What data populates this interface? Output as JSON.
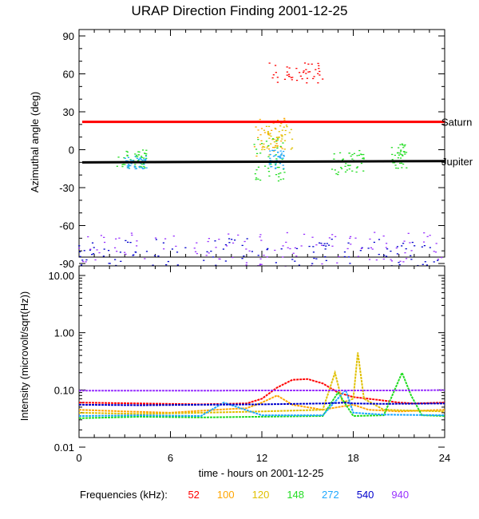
{
  "title": "URAP Direction Finding  2001-12-25",
  "frequencies_label": "Frequencies (kHz):",
  "chart_data": [
    {
      "type": "scatter",
      "ylabel": "Azimuthal angle (deg)",
      "xlim": [
        0,
        24
      ],
      "ylim": [
        -90,
        90
      ],
      "yticks": [
        "90",
        "60",
        "30",
        "0",
        "-30",
        "-60",
        "-90"
      ],
      "reference_lines": [
        {
          "name": "Saturn",
          "color": "#ff0000",
          "y_start": 22,
          "y_end": 22
        },
        {
          "name": "Jupiter",
          "color": "#000000",
          "y_start": -10,
          "y_end": -9
        }
      ],
      "clusters": [
        {
          "freq": "52",
          "x": [
            12.5,
            16.0
          ],
          "y": [
            52,
            70
          ]
        },
        {
          "freq": "100",
          "x": [
            11.5,
            13.5
          ],
          "y": [
            -5,
            25
          ]
        },
        {
          "freq": "120",
          "x": [
            12.0,
            14.0
          ],
          "y": [
            0,
            20
          ]
        },
        {
          "freq": "148",
          "x": [
            2.5,
            4.5
          ],
          "y": [
            -15,
            0
          ]
        },
        {
          "freq": "148",
          "x": [
            11.5,
            13.5
          ],
          "y": [
            -25,
            10
          ]
        },
        {
          "freq": "148",
          "x": [
            16.5,
            19.0
          ],
          "y": [
            -20,
            0
          ]
        },
        {
          "freq": "148",
          "x": [
            20.5,
            21.5
          ],
          "y": [
            -15,
            5
          ]
        },
        {
          "freq": "272",
          "x": [
            3.0,
            4.5
          ],
          "y": [
            -15,
            -5
          ]
        },
        {
          "freq": "272",
          "x": [
            12.5,
            13.5
          ],
          "y": [
            -15,
            0
          ]
        },
        {
          "freq": "540",
          "x": [
            0,
            24
          ],
          "y": [
            -92,
            -70
          ]
        },
        {
          "freq": "940",
          "x": [
            0,
            24
          ],
          "y": [
            -92,
            -65
          ]
        }
      ]
    },
    {
      "type": "line",
      "ylabel": "Intensity (microvolt/sqrt(Hz))",
      "xlabel": "time - hours on 2001-12-25",
      "xlim": [
        0,
        24
      ],
      "xticks": [
        "0",
        "6",
        "12",
        "18",
        "24"
      ],
      "ylim": [
        0.01,
        10
      ],
      "yscale": "log",
      "yticks": [
        "10.00",
        "1.00",
        "0.10",
        "0.01"
      ],
      "series": [
        {
          "name": "52",
          "color": "#ff0000",
          "x": [
            0,
            4,
            8,
            11,
            12,
            13,
            14,
            15,
            16,
            17,
            18,
            19,
            20,
            21,
            22,
            24
          ],
          "y": [
            0.06,
            0.058,
            0.056,
            0.058,
            0.07,
            0.11,
            0.15,
            0.155,
            0.13,
            0.09,
            0.075,
            0.07,
            0.065,
            0.06,
            0.058,
            0.06
          ]
        },
        {
          "name": "100",
          "color": "#ffa500",
          "x": [
            0,
            3,
            6,
            9,
            11,
            12,
            13,
            14,
            16,
            17,
            18,
            19,
            21,
            24
          ],
          "y": [
            0.045,
            0.042,
            0.04,
            0.045,
            0.048,
            0.06,
            0.08,
            0.055,
            0.045,
            0.05,
            0.055,
            0.045,
            0.042,
            0.045
          ]
        },
        {
          "name": "120",
          "color": "#e0c000",
          "x": [
            0,
            4,
            8,
            12,
            16,
            16.8,
            17.3,
            18,
            18.3,
            18.7,
            20,
            24
          ],
          "y": [
            0.04,
            0.038,
            0.04,
            0.042,
            0.045,
            0.2,
            0.06,
            0.07,
            0.45,
            0.07,
            0.045,
            0.042
          ]
        },
        {
          "name": "148",
          "color": "#22dd22",
          "x": [
            0,
            4,
            8,
            12,
            16,
            17,
            18,
            20,
            21.2,
            21.8,
            22.5,
            24
          ],
          "y": [
            0.032,
            0.034,
            0.033,
            0.034,
            0.035,
            0.09,
            0.035,
            0.036,
            0.2,
            0.08,
            0.036,
            0.035
          ]
        },
        {
          "name": "272",
          "color": "#1fa8ff",
          "x": [
            0,
            4,
            8,
            9.5,
            12,
            16,
            17.5,
            18,
            20,
            24
          ],
          "y": [
            0.035,
            0.036,
            0.035,
            0.06,
            0.036,
            0.036,
            0.1,
            0.04,
            0.037,
            0.036
          ]
        },
        {
          "name": "540",
          "color": "#0000cc",
          "x": [
            0,
            4,
            8,
            12,
            16,
            17.5,
            18,
            20,
            24
          ],
          "y": [
            0.055,
            0.054,
            0.055,
            0.056,
            0.058,
            0.06,
            0.058,
            0.057,
            0.058
          ]
        },
        {
          "name": "940",
          "color": "#9932ff",
          "x": [
            0,
            4,
            8,
            12,
            16,
            20,
            24
          ],
          "y": [
            0.097,
            0.097,
            0.097,
            0.098,
            0.098,
            0.098,
            0.099
          ]
        }
      ]
    }
  ],
  "legend": [
    {
      "label": "52",
      "color": "#ff0000"
    },
    {
      "label": "100",
      "color": "#ffa500"
    },
    {
      "label": "120",
      "color": "#e0c000"
    },
    {
      "label": "148",
      "color": "#22dd22"
    },
    {
      "label": "272",
      "color": "#1fa8ff"
    },
    {
      "label": "540",
      "color": "#0000cc"
    },
    {
      "label": "940",
      "color": "#9932ff"
    }
  ]
}
